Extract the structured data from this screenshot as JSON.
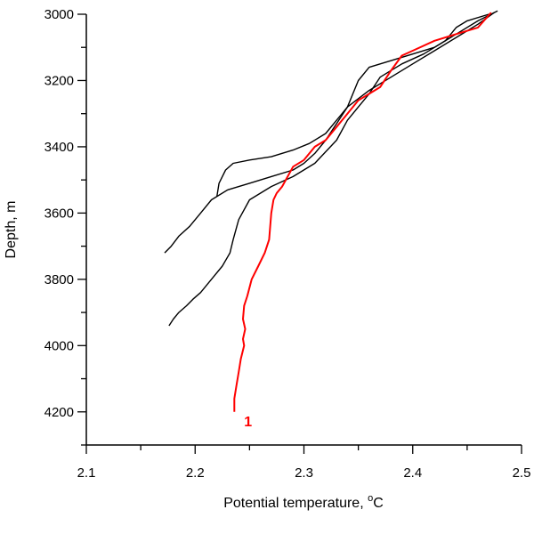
{
  "chart_data": {
    "type": "line",
    "xlabel": "Potential temperature, ",
    "xlabel_unit_sup": "o",
    "xlabel_unit": "C",
    "ylabel": "Depth, m",
    "xlim": [
      2.1,
      2.5
    ],
    "ylim": [
      4300,
      3000
    ],
    "y_inverted": true,
    "x_major_ticks": [
      2.1,
      2.2,
      2.3,
      2.4,
      2.5
    ],
    "x_tick_labels": [
      "2.1",
      "2.2",
      "2.3",
      "2.4",
      "2.5"
    ],
    "x_minor_ticks": [
      2.15,
      2.25,
      2.35,
      2.45
    ],
    "y_major_ticks": [
      3000,
      3200,
      3400,
      3600,
      3800,
      4000,
      4200
    ],
    "y_tick_labels": [
      "3000",
      "3200",
      "3400",
      "3600",
      "3800",
      "4000",
      "4200"
    ],
    "y_minor_ticks": [
      3100,
      3300,
      3500,
      3700,
      3900,
      4100,
      4300
    ],
    "grid": false,
    "colors": {
      "highlight": "#ff0000",
      "other": "#000000"
    },
    "series": [
      {
        "label": "1",
        "color": "#ff0000",
        "x": [
          2.472,
          2.468,
          2.46,
          2.44,
          2.42,
          2.4,
          2.39,
          2.38,
          2.37,
          2.36,
          2.35,
          2.34,
          2.33,
          2.32,
          2.31,
          2.3,
          2.29,
          2.285,
          2.28,
          2.275,
          2.272,
          2.27,
          2.269,
          2.268,
          2.264,
          2.258,
          2.252,
          2.248,
          2.245,
          2.244,
          2.246,
          2.244,
          2.245,
          2.242,
          2.24,
          2.238,
          2.236,
          2.236
        ],
        "y": [
          2995,
          3010,
          3040,
          3060,
          3080,
          3110,
          3125,
          3170,
          3220,
          3240,
          3260,
          3300,
          3340,
          3380,
          3400,
          3440,
          3460,
          3490,
          3520,
          3540,
          3560,
          3600,
          3640,
          3680,
          3720,
          3760,
          3800,
          3850,
          3880,
          3920,
          3950,
          3980,
          4000,
          4040,
          4080,
          4120,
          4160,
          4200
        ]
      },
      {
        "label": "",
        "color": "#000000",
        "x": [
          2.478,
          2.46,
          2.44,
          2.42,
          2.39,
          2.36,
          2.35,
          2.34,
          2.33,
          2.32,
          2.305,
          2.29,
          2.27,
          2.25,
          2.235,
          2.228,
          2.225,
          2.222,
          2.22
        ],
        "y": [
          2990,
          3020,
          3060,
          3100,
          3130,
          3160,
          3200,
          3280,
          3320,
          3360,
          3390,
          3410,
          3430,
          3440,
          3450,
          3470,
          3490,
          3510,
          3550
        ]
      },
      {
        "label": "",
        "color": "#000000",
        "x": [
          2.475,
          2.46,
          2.44,
          2.42,
          2.4,
          2.38,
          2.36,
          2.34,
          2.33,
          2.32,
          2.31,
          2.3,
          2.29,
          2.27,
          2.25,
          2.23,
          2.215,
          2.205,
          2.195,
          2.185,
          2.178,
          2.172
        ],
        "y": [
          2995,
          3030,
          3070,
          3110,
          3150,
          3190,
          3230,
          3280,
          3330,
          3380,
          3420,
          3450,
          3470,
          3490,
          3510,
          3530,
          3560,
          3600,
          3640,
          3670,
          3700,
          3720
        ]
      },
      {
        "label": "",
        "color": "#000000",
        "x": [
          2.47,
          2.45,
          2.44,
          2.43,
          2.41,
          2.39,
          2.37,
          2.36,
          2.35,
          2.34,
          2.33,
          2.31,
          2.29,
          2.27,
          2.25,
          2.24,
          2.235,
          2.232,
          2.225,
          2.215,
          2.205,
          2.198,
          2.192,
          2.185,
          2.18,
          2.176
        ],
        "y": [
          3000,
          3020,
          3040,
          3080,
          3120,
          3150,
          3190,
          3240,
          3280,
          3320,
          3380,
          3450,
          3490,
          3520,
          3560,
          3620,
          3680,
          3720,
          3760,
          3800,
          3840,
          3860,
          3880,
          3900,
          3920,
          3940
        ]
      }
    ]
  }
}
